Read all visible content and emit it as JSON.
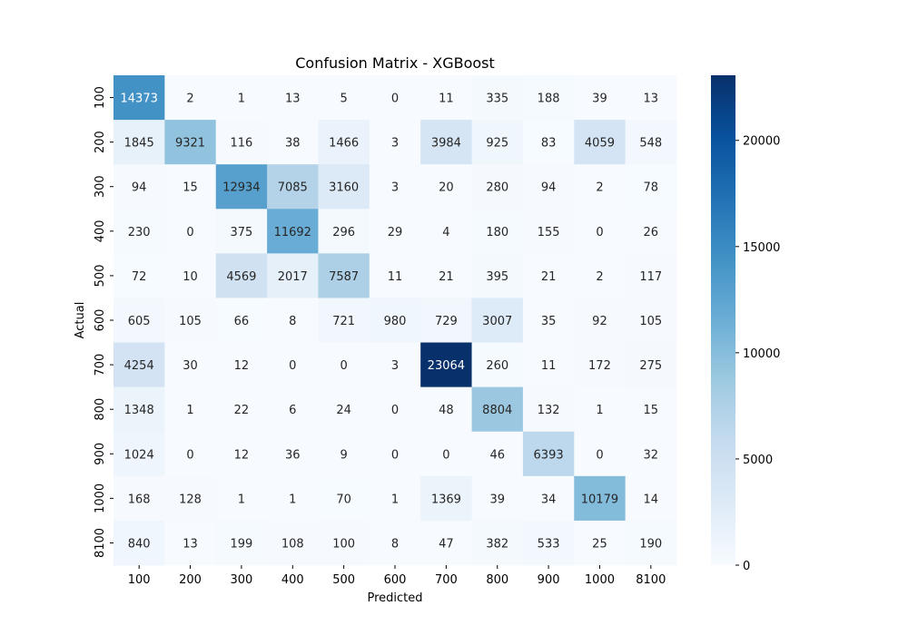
{
  "chart_data": {
    "type": "heatmap",
    "title": "Confusion Matrix - XGBoost",
    "xlabel": "Predicted",
    "ylabel": "Actual",
    "x_categories": [
      "100",
      "200",
      "300",
      "400",
      "500",
      "600",
      "700",
      "800",
      "900",
      "1000",
      "8100"
    ],
    "y_categories": [
      "100",
      "200",
      "300",
      "400",
      "500",
      "600",
      "700",
      "800",
      "900",
      "1000",
      "8100"
    ],
    "values": [
      [
        14373,
        2,
        1,
        13,
        5,
        0,
        11,
        335,
        188,
        39,
        13
      ],
      [
        1845,
        9321,
        116,
        38,
        1466,
        3,
        3984,
        925,
        83,
        4059,
        548
      ],
      [
        94,
        15,
        12934,
        7085,
        3160,
        3,
        20,
        280,
        94,
        2,
        78
      ],
      [
        230,
        0,
        375,
        11692,
        296,
        29,
        4,
        180,
        155,
        0,
        26
      ],
      [
        72,
        10,
        4569,
        2017,
        7587,
        11,
        21,
        395,
        21,
        2,
        117
      ],
      [
        605,
        105,
        66,
        8,
        721,
        980,
        729,
        3007,
        35,
        92,
        105
      ],
      [
        4254,
        30,
        12,
        0,
        0,
        3,
        23064,
        260,
        11,
        172,
        275
      ],
      [
        1348,
        1,
        22,
        6,
        24,
        0,
        48,
        8804,
        132,
        1,
        15
      ],
      [
        1024,
        0,
        12,
        36,
        9,
        0,
        0,
        46,
        6393,
        0,
        32
      ],
      [
        168,
        128,
        1,
        1,
        70,
        1,
        1369,
        39,
        34,
        10179,
        14
      ],
      [
        840,
        13,
        199,
        108,
        100,
        8,
        47,
        382,
        533,
        25,
        190
      ]
    ],
    "colormap": "Blues",
    "colorbar": {
      "range": [
        0,
        23064
      ],
      "ticks": [
        0,
        5000,
        10000,
        15000,
        20000
      ],
      "tick_labels": [
        "0",
        "5000",
        "10000",
        "15000",
        "20000"
      ]
    },
    "grid": false
  }
}
